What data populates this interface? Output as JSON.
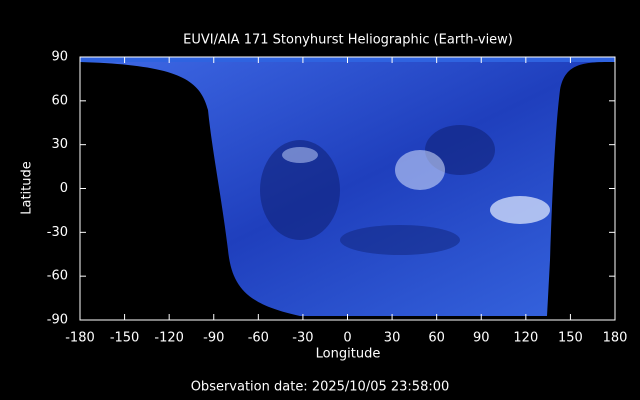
{
  "chart_data": {
    "type": "image",
    "title": "EUVI/AIA 171 Stonyhurst Heliographic (Earth-view)",
    "xlabel": "Longitude",
    "ylabel": "Latitude",
    "xlim": [
      -180,
      180
    ],
    "ylim": [
      -90,
      90
    ],
    "xticks": [
      -180,
      -150,
      -120,
      -90,
      -60,
      -30,
      0,
      30,
      60,
      90,
      120,
      150,
      180
    ],
    "yticks": [
      -90,
      -60,
      -30,
      0,
      30,
      60,
      90
    ],
    "footer": "Observation date: 2025/10/05 23:58:00"
  }
}
